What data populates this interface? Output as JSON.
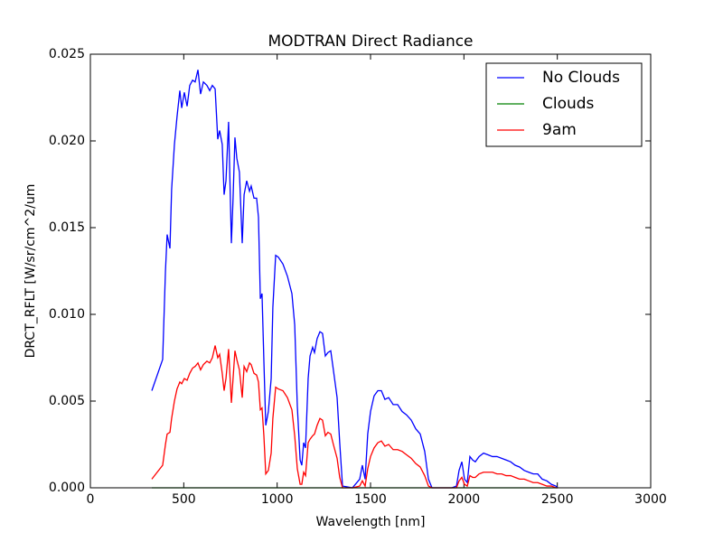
{
  "chart_data": {
    "type": "line",
    "title": "MODTRAN Direct Radiance",
    "x_label": "Wavelength [nm]",
    "y_label": "DRCT_RFLT [W/sr/cm^2/um",
    "xlim": [
      0,
      3000
    ],
    "xticks": [
      0,
      500,
      1000,
      1500,
      2000,
      2500,
      3000
    ],
    "ylim": [
      0,
      0.025
    ],
    "yticks": [
      {
        "value": 0,
        "label": "0.000"
      },
      {
        "value": 0.005,
        "label": "0.005"
      },
      {
        "value": 0.01,
        "label": "0.010"
      },
      {
        "value": 0.015,
        "label": "0.015"
      },
      {
        "value": 0.02,
        "label": "0.020"
      },
      {
        "value": 0.025,
        "label": "0.025"
      }
    ],
    "grid": false,
    "legend": "upper right",
    "x": [
      329,
      387,
      402,
      411,
      426,
      435,
      450,
      464,
      479,
      489,
      503,
      518,
      532,
      547,
      561,
      576,
      590,
      605,
      624,
      639,
      653,
      668,
      682,
      692,
      706,
      716,
      726,
      740,
      755,
      764,
      774,
      784,
      798,
      813,
      823,
      837,
      852,
      861,
      876,
      890,
      900,
      910,
      919,
      929,
      939,
      953,
      968,
      977,
      992,
      1006,
      1031,
      1055,
      1079,
      1094,
      1108,
      1123,
      1132,
      1142,
      1152,
      1166,
      1176,
      1190,
      1200,
      1214,
      1229,
      1243,
      1258,
      1272,
      1287,
      1301,
      1321,
      1335,
      1350,
      1403,
      1442,
      1456,
      1471,
      1485,
      1500,
      1519,
      1539,
      1558,
      1577,
      1597,
      1621,
      1645,
      1669,
      1693,
      1718,
      1742,
      1766,
      1790,
      1810,
      1829,
      1935,
      1960,
      1974,
      1989,
      2003,
      2018,
      2032,
      2047,
      2061,
      2081,
      2105,
      2129,
      2153,
      2177,
      2202,
      2226,
      2250,
      2274,
      2298,
      2323,
      2347,
      2371,
      2395,
      2419,
      2444,
      2468,
      2492,
      2502
    ],
    "series": [
      {
        "name": "No Clouds",
        "color": "#0000ff",
        "values": [
          0.0056,
          0.0074,
          0.0125,
          0.0146,
          0.0138,
          0.0172,
          0.0198,
          0.0214,
          0.0229,
          0.0219,
          0.0228,
          0.022,
          0.0232,
          0.0235,
          0.0234,
          0.0241,
          0.0227,
          0.0234,
          0.0232,
          0.0229,
          0.0232,
          0.023,
          0.0201,
          0.0206,
          0.0198,
          0.0169,
          0.0177,
          0.0211,
          0.0141,
          0.0167,
          0.0202,
          0.019,
          0.0182,
          0.0141,
          0.0169,
          0.0177,
          0.0171,
          0.0174,
          0.0167,
          0.0167,
          0.0156,
          0.0109,
          0.0112,
          0.0073,
          0.0036,
          0.0044,
          0.0063,
          0.0104,
          0.0134,
          0.0133,
          0.0129,
          0.0122,
          0.0112,
          0.0094,
          0.0047,
          0.0016,
          0.0013,
          0.0026,
          0.0023,
          0.0063,
          0.0076,
          0.0081,
          0.0078,
          0.0086,
          0.009,
          0.0089,
          0.0076,
          0.0078,
          0.0079,
          0.0068,
          0.0052,
          0.0026,
          0.0001,
          0,
          0.0005,
          0.0013,
          0.0005,
          0.0031,
          0.0044,
          0.0053,
          0.0056,
          0.0056,
          0.0051,
          0.0052,
          0.0048,
          0.0048,
          0.0044,
          0.0042,
          0.0039,
          0.0034,
          0.0031,
          0.0021,
          0.0005,
          0,
          0,
          0.0001,
          0.001,
          0.0015,
          0.0005,
          0.0003,
          0.0018,
          0.0016,
          0.0015,
          0.0018,
          0.002,
          0.0019,
          0.0018,
          0.0018,
          0.0017,
          0.0016,
          0.0015,
          0.0013,
          0.0012,
          0.001,
          0.0009,
          0.0008,
          0.0008,
          0.0005,
          0.0004,
          0.0002,
          0.0001,
          0
        ]
      },
      {
        "name": "Clouds",
        "color": "#008000",
        "values": [
          0,
          0,
          0,
          0,
          0,
          0,
          0,
          0,
          0,
          0,
          0,
          0,
          0,
          0,
          0,
          0,
          0,
          0,
          0,
          0,
          0,
          0,
          0,
          0,
          0,
          0,
          0,
          0,
          0,
          0,
          0,
          0,
          0,
          0,
          0,
          0,
          0,
          0,
          0,
          0,
          0,
          0,
          0,
          0,
          0,
          0,
          0,
          0,
          0,
          0,
          0,
          0,
          0,
          0,
          0,
          0,
          0,
          0,
          0,
          0,
          0,
          0,
          0,
          0,
          0,
          0,
          0,
          0,
          0,
          0,
          0,
          0,
          0,
          0,
          0,
          0,
          0,
          0,
          0,
          0,
          0,
          0,
          0,
          0,
          0,
          0,
          0,
          0,
          0,
          0,
          0,
          0,
          0,
          0,
          0,
          0,
          0,
          0,
          0,
          0,
          0,
          0,
          0,
          0,
          0,
          0,
          0,
          0,
          0,
          0,
          0,
          0,
          0,
          0,
          0,
          0,
          0,
          0,
          0,
          0,
          0,
          0
        ]
      },
      {
        "name": "9am",
        "color": "#ff0000",
        "values": [
          0.0005,
          0.0013,
          0.0025,
          0.0031,
          0.0032,
          0.004,
          0.005,
          0.0057,
          0.0061,
          0.006,
          0.0063,
          0.0062,
          0.0066,
          0.0069,
          0.007,
          0.0072,
          0.0068,
          0.0071,
          0.0073,
          0.0072,
          0.0075,
          0.0082,
          0.0075,
          0.0077,
          0.0066,
          0.0056,
          0.0063,
          0.008,
          0.0049,
          0.0063,
          0.0079,
          0.0074,
          0.0068,
          0.0052,
          0.007,
          0.0067,
          0.0072,
          0.0071,
          0.0066,
          0.0065,
          0.0061,
          0.0045,
          0.0046,
          0.003,
          0.0008,
          0.001,
          0.002,
          0.004,
          0.0058,
          0.0057,
          0.0056,
          0.0052,
          0.0045,
          0.003,
          0.0011,
          0.0002,
          0.0002,
          0.0009,
          0.0007,
          0.0026,
          0.0028,
          0.003,
          0.0031,
          0.0036,
          0.004,
          0.0039,
          0.003,
          0.0032,
          0.0031,
          0.0025,
          0.0017,
          0.0006,
          0,
          0,
          0.0001,
          0.0004,
          0.0001,
          0.0011,
          0.0018,
          0.0023,
          0.0026,
          0.0027,
          0.0024,
          0.0025,
          0.0022,
          0.0022,
          0.0021,
          0.0019,
          0.0017,
          0.0014,
          0.0012,
          0.0007,
          0.0001,
          0,
          0,
          0,
          0.0004,
          0.0006,
          0.0002,
          0.0001,
          0.0007,
          0.0006,
          0.0006,
          0.0008,
          0.0009,
          0.0009,
          0.0009,
          0.0008,
          0.0008,
          0.0007,
          0.0007,
          0.0006,
          0.0005,
          0.0005,
          0.0004,
          0.0003,
          0.0003,
          0.0002,
          0.0001,
          0.0001,
          0,
          0
        ]
      }
    ]
  }
}
